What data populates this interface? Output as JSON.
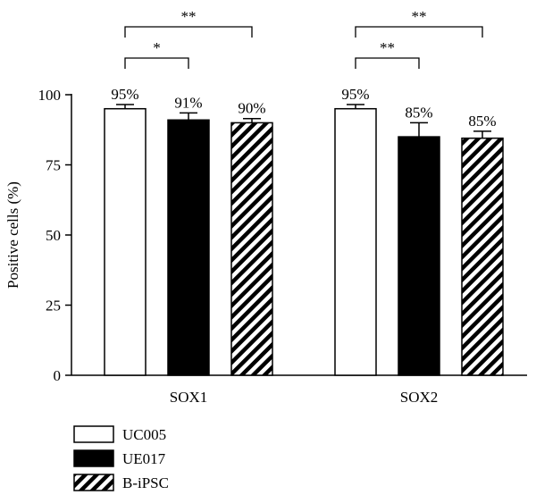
{
  "chart_data": {
    "type": "bar",
    "ylabel": "Positive cells (%)",
    "ylim": [
      0,
      100
    ],
    "yticks": [
      0,
      25,
      50,
      75,
      100
    ],
    "categories": [
      "SOX1",
      "SOX2"
    ],
    "series": [
      {
        "name": "UC005",
        "fill": "white",
        "values": [
          95,
          95
        ],
        "errors": [
          1.5,
          1.5
        ],
        "labels": [
          "95%",
          "95%"
        ]
      },
      {
        "name": "UE017",
        "fill": "black",
        "values": [
          91,
          85
        ],
        "errors": [
          2.5,
          5.0
        ],
        "labels": [
          "91%",
          "85%"
        ]
      },
      {
        "name": "B-iPSC",
        "fill": "hatch",
        "values": [
          90,
          84.5
        ],
        "errors": [
          1.5,
          2.5
        ],
        "labels": [
          "90%",
          "85%"
        ]
      }
    ],
    "significance": [
      {
        "category": 0,
        "from_series": 0,
        "to_series": 1,
        "label": "*",
        "level": 1
      },
      {
        "category": 0,
        "from_series": 0,
        "to_series": 2,
        "label": "**",
        "level": 2
      },
      {
        "category": 1,
        "from_series": 0,
        "to_series": 1,
        "label": "**",
        "level": 1
      },
      {
        "category": 1,
        "from_series": 0,
        "to_series": 2,
        "label": "**",
        "level": 2
      }
    ],
    "legend_position": "bottom-left",
    "grid": false
  }
}
